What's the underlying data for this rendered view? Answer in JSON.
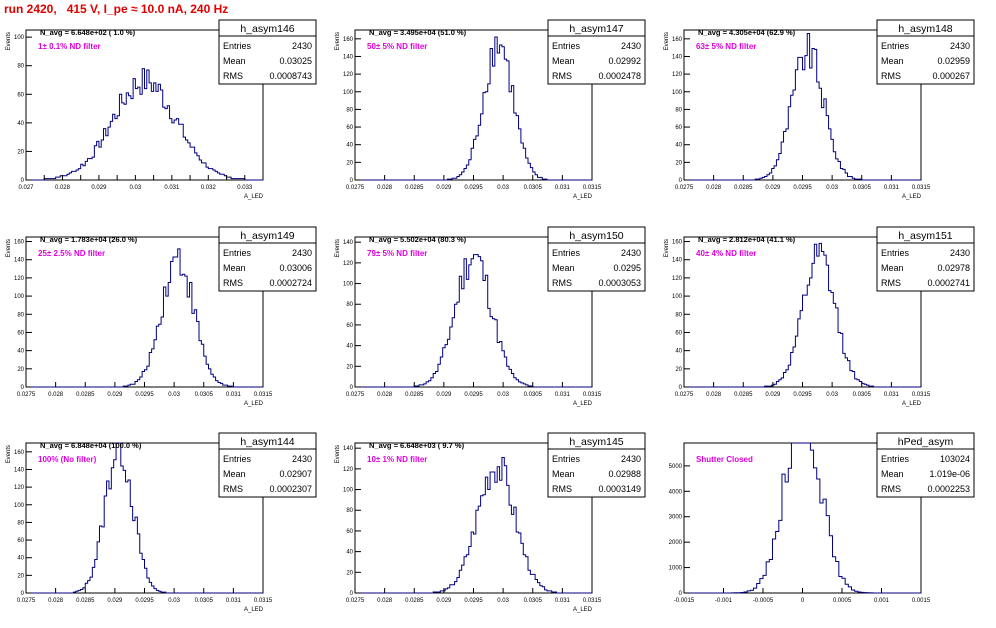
{
  "page_title": "run 2420,   415 V, I_pe ≈ 10.0 nA, 240 Hz",
  "colors": {
    "title": "#e00000",
    "annotation": "#dd00dd",
    "histogram": "#000080",
    "text": "#000000"
  },
  "chart_data": [
    {
      "type": "bar",
      "name": "h_asym146",
      "stats": {
        "entries_label": "Entries",
        "entries": "2430",
        "mean_label": "Mean",
        "mean": "0.03025",
        "rms_label": "RMS",
        "rms": "0.0008743"
      },
      "navg_text": "N_avg = 6.648e+02 ( 1.0 %)",
      "annotation": "1± 0.1% ND filter",
      "ylabel": "Events",
      "xlabel": "A_LED",
      "xlim": [
        0.027,
        0.0335
      ],
      "ylim": [
        0,
        105
      ],
      "xticks": [
        0.027,
        0.0275,
        0.028,
        0.0285,
        0.029,
        0.0295,
        0.03,
        0.0305,
        0.031,
        0.0315,
        0.032,
        0.0325,
        0.033
      ],
      "xticklabels": [
        "0.027",
        "",
        "0.028",
        "",
        "0.029",
        "",
        "0.03",
        "",
        "0.031",
        "",
        "0.032",
        "",
        "0.033"
      ],
      "yticks": [
        0,
        20,
        40,
        60,
        80,
        100
      ],
      "mean": 0.03025,
      "rms": 0.0008743,
      "entries": 2430,
      "bin_width": 6.25e-05
    },
    {
      "type": "bar",
      "name": "h_asym147",
      "stats": {
        "entries_label": "Entries",
        "entries": "2430",
        "mean_label": "Mean",
        "mean": "0.02992",
        "rms_label": "RMS",
        "rms": "0.0002478"
      },
      "navg_text": "N_avg = 3.495e+04 (51.0 %)",
      "annotation": "50± 5% ND filter",
      "ylabel": "Events",
      "xlabel": "A_LED",
      "xlim": [
        0.0275,
        0.0315
      ],
      "ylim": [
        0,
        170
      ],
      "xticks": [
        0.0275,
        0.028,
        0.0285,
        0.029,
        0.0295,
        0.03,
        0.0305,
        0.031,
        0.0315
      ],
      "xticklabels": [
        "0.0275",
        "0.028",
        "0.0285",
        "0.029",
        "0.0295",
        "0.03",
        "0.0305",
        "0.031",
        "0.0315"
      ],
      "yticks": [
        0,
        20,
        40,
        60,
        80,
        100,
        120,
        140,
        160
      ],
      "mean": 0.02992,
      "rms": 0.0002478,
      "entries": 2430,
      "bin_width": 4e-05
    },
    {
      "type": "bar",
      "name": "h_asym148",
      "stats": {
        "entries_label": "Entries",
        "entries": "2430",
        "mean_label": "Mean",
        "mean": "0.02959",
        "rms_label": "RMS",
        "rms": "0.000267"
      },
      "navg_text": "N_avg = 4.305e+04 (62.9 %)",
      "annotation": "63± 5% ND filter",
      "ylabel": "Events",
      "xlabel": "A_LED",
      "xlim": [
        0.0275,
        0.0315
      ],
      "ylim": [
        0,
        170
      ],
      "xticks": [
        0.0275,
        0.028,
        0.0285,
        0.029,
        0.0295,
        0.03,
        0.0305,
        0.031,
        0.0315
      ],
      "xticklabels": [
        "0.0275",
        "0.028",
        "0.0285",
        "0.029",
        "0.0295",
        "0.03",
        "0.0305",
        "0.031",
        "0.0315"
      ],
      "yticks": [
        0,
        20,
        40,
        60,
        80,
        100,
        120,
        140,
        160
      ],
      "mean": 0.02959,
      "rms": 0.000267,
      "entries": 2430,
      "bin_width": 4e-05
    },
    {
      "type": "bar",
      "name": "h_asym149",
      "stats": {
        "entries_label": "Entries",
        "entries": "2430",
        "mean_label": "Mean",
        "mean": "0.03006",
        "rms_label": "RMS",
        "rms": "0.0002724"
      },
      "navg_text": "N_avg = 1.783e+04 (26.0 %)",
      "annotation": "25± 2.5% ND filter",
      "ylabel": "Events",
      "xlabel": "A_LED",
      "xlim": [
        0.0275,
        0.0315
      ],
      "ylim": [
        0,
        165
      ],
      "xticks": [
        0.0275,
        0.028,
        0.0285,
        0.029,
        0.0295,
        0.03,
        0.0305,
        0.031,
        0.0315
      ],
      "xticklabels": [
        "0.0275",
        "0.028",
        "0.0285",
        "0.029",
        "0.0295",
        "0.03",
        "0.0305",
        "0.031",
        "0.0315"
      ],
      "yticks": [
        0,
        20,
        40,
        60,
        80,
        100,
        120,
        140,
        160
      ],
      "mean": 0.03006,
      "rms": 0.0002724,
      "entries": 2430,
      "bin_width": 4e-05
    },
    {
      "type": "bar",
      "name": "h_asym150",
      "stats": {
        "entries_label": "Entries",
        "entries": "2430",
        "mean_label": "Mean",
        "mean": "0.0295",
        "rms_label": "RMS",
        "rms": "0.0003053"
      },
      "navg_text": "N_avg = 5.502e+04 (80.3 %)",
      "annotation": "79± 5% ND filter",
      "ylabel": "Events",
      "xlabel": "A_LED",
      "xlim": [
        0.0275,
        0.0315
      ],
      "ylim": [
        0,
        145
      ],
      "xticks": [
        0.0275,
        0.028,
        0.0285,
        0.029,
        0.0295,
        0.03,
        0.0305,
        0.031,
        0.0315
      ],
      "xticklabels": [
        "0.0275",
        "0.028",
        "0.0285",
        "0.029",
        "0.0295",
        "0.03",
        "0.0305",
        "0.031",
        "0.0315"
      ],
      "yticks": [
        0,
        20,
        40,
        60,
        80,
        100,
        120,
        140
      ],
      "mean": 0.0295,
      "rms": 0.0003053,
      "entries": 2430,
      "bin_width": 4e-05
    },
    {
      "type": "bar",
      "name": "h_asym151",
      "stats": {
        "entries_label": "Entries",
        "entries": "2430",
        "mean_label": "Mean",
        "mean": "0.02978",
        "rms_label": "RMS",
        "rms": "0.0002741"
      },
      "navg_text": "N_avg = 2.812e+04 (41.1 %)",
      "annotation": "40± 4% ND filter",
      "ylabel": "Events",
      "xlabel": "A_LED",
      "xlim": [
        0.0275,
        0.0315
      ],
      "ylim": [
        0,
        165
      ],
      "xticks": [
        0.0275,
        0.028,
        0.0285,
        0.029,
        0.0295,
        0.03,
        0.0305,
        0.031,
        0.0315
      ],
      "xticklabels": [
        "0.0275",
        "0.028",
        "0.0285",
        "0.029",
        "0.0295",
        "0.03",
        "0.0305",
        "0.031",
        "0.0315"
      ],
      "yticks": [
        0,
        20,
        40,
        60,
        80,
        100,
        120,
        140,
        160
      ],
      "mean": 0.02978,
      "rms": 0.0002741,
      "entries": 2430,
      "bin_width": 4e-05
    },
    {
      "type": "bar",
      "name": "h_asym144",
      "stats": {
        "entries_label": "Entries",
        "entries": "2430",
        "mean_label": "Mean",
        "mean": "0.02907",
        "rms_label": "RMS",
        "rms": "0.0002307"
      },
      "navg_text": "N_avg = 6.848e+04 (100.0 %)",
      "annotation": "100% (No filter)",
      "ylabel": "Events",
      "xlabel": "A_LED",
      "xlim": [
        0.0275,
        0.0315
      ],
      "ylim": [
        0,
        170
      ],
      "xticks": [
        0.0275,
        0.028,
        0.0285,
        0.029,
        0.0295,
        0.03,
        0.0305,
        0.031,
        0.0315
      ],
      "xticklabels": [
        "0.0275",
        "0.028",
        "0.0285",
        "0.029",
        "0.0295",
        "0.03",
        "0.0305",
        "0.031",
        "0.0315"
      ],
      "yticks": [
        0,
        20,
        40,
        60,
        80,
        100,
        120,
        140,
        160
      ],
      "mean": 0.02907,
      "rms": 0.0002307,
      "entries": 2430,
      "bin_width": 4e-05
    },
    {
      "type": "bar",
      "name": "h_asym145",
      "stats": {
        "entries_label": "Entries",
        "entries": "2430",
        "mean_label": "Mean",
        "mean": "0.02988",
        "rms_label": "RMS",
        "rms": "0.0003149"
      },
      "navg_text": "N_avg = 6.648e+03 ( 9.7 %)",
      "annotation": "10± 1% ND filter",
      "ylabel": "Events",
      "xlabel": "A_LED",
      "xlim": [
        0.0275,
        0.0315
      ],
      "ylim": [
        0,
        145
      ],
      "xticks": [
        0.0275,
        0.028,
        0.0285,
        0.029,
        0.0295,
        0.03,
        0.0305,
        0.031,
        0.0315
      ],
      "xticklabels": [
        "0.0275",
        "0.028",
        "0.0285",
        "0.029",
        "0.0295",
        "0.03",
        "0.0305",
        "0.031",
        "0.0315"
      ],
      "yticks": [
        0,
        20,
        40,
        60,
        80,
        100,
        120,
        140
      ],
      "mean": 0.02988,
      "rms": 0.0003149,
      "entries": 2430,
      "bin_width": 4e-05
    },
    {
      "type": "bar",
      "name": "hPed_asym",
      "stats": {
        "entries_label": "Entries",
        "entries": "103024",
        "mean_label": "Mean",
        "mean": "1.019e-06",
        "rms_label": "RMS",
        "rms": "0.0002253"
      },
      "navg_text": "",
      "annotation": "Shutter Closed",
      "ylabel": "",
      "xlabel": "",
      "xlim": [
        -0.0015,
        0.0015
      ],
      "ylim": [
        0,
        5900
      ],
      "xticks": [
        -0.0015,
        -0.001,
        -0.0005,
        0,
        0.0005,
        0.001,
        0.0015
      ],
      "xticklabels": [
        "-0.0015",
        "-0.001",
        "-0.0005",
        "0",
        "0.0005",
        "0.001",
        "0.0015"
      ],
      "yticks": [
        0,
        1000,
        2000,
        3000,
        4000,
        5000
      ],
      "mean": 1.019e-06,
      "rms": 0.0002253,
      "entries": 103024,
      "bin_width": 4e-05
    }
  ]
}
